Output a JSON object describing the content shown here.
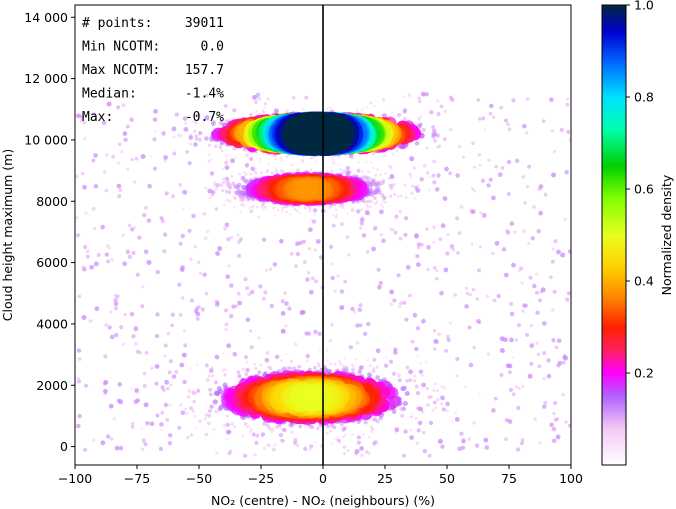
{
  "chart_data": {
    "type": "scatter",
    "title": "",
    "xlabel": "NO₂ (centre) - NO₂ (neighbours) (%)",
    "ylabel": "Cloud height maximum (m)",
    "xlim": [
      -100,
      100
    ],
    "ylim": [
      -600,
      14400
    ],
    "x_ticks": [
      "−100",
      "−75",
      "−50",
      "−25",
      "0",
      "25",
      "50",
      "75",
      "100"
    ],
    "y_ticks": [
      "0",
      "2000",
      "4000",
      "6000",
      "8000",
      "10 000",
      "12 000",
      "14 000"
    ],
    "colorbar": {
      "label": "Normalized density",
      "range": [
        0,
        1.0
      ],
      "ticks": [
        "0.2",
        "0.4",
        "0.6",
        "0.8",
        "1.0"
      ],
      "colormap": "gist_ncar_r"
    },
    "reference_line": {
      "x": 0,
      "color": "#000000"
    },
    "stats_box": [
      {
        "label": "# points:",
        "value": "39011"
      },
      {
        "label": "Min NCOTM:",
        "value": "0.0"
      },
      {
        "label": "Max NCOTM:",
        "value": "157.7"
      },
      {
        "label": "Median:",
        "value": "-1.4%"
      },
      {
        "label": "Max:",
        "value": "-0.7%"
      }
    ],
    "clusters": [
      {
        "name": "upper",
        "x_center": -2,
        "y_center": 10200,
        "x_spread": 42,
        "y_spread": 700,
        "peak_density": 1.0
      },
      {
        "name": "middle",
        "x_center": -6,
        "y_center": 8400,
        "x_spread": 34,
        "y_spread": 700,
        "peak_density": 0.33
      },
      {
        "name": "lower",
        "x_center": -5,
        "y_center": 1600,
        "x_spread": 45,
        "y_spread": 1200,
        "peak_density": 0.45
      },
      {
        "name": "background",
        "x_center": 0,
        "y_center": 6000,
        "x_spread": 80,
        "y_spread": 3500,
        "peak_density": 0.08
      }
    ]
  }
}
